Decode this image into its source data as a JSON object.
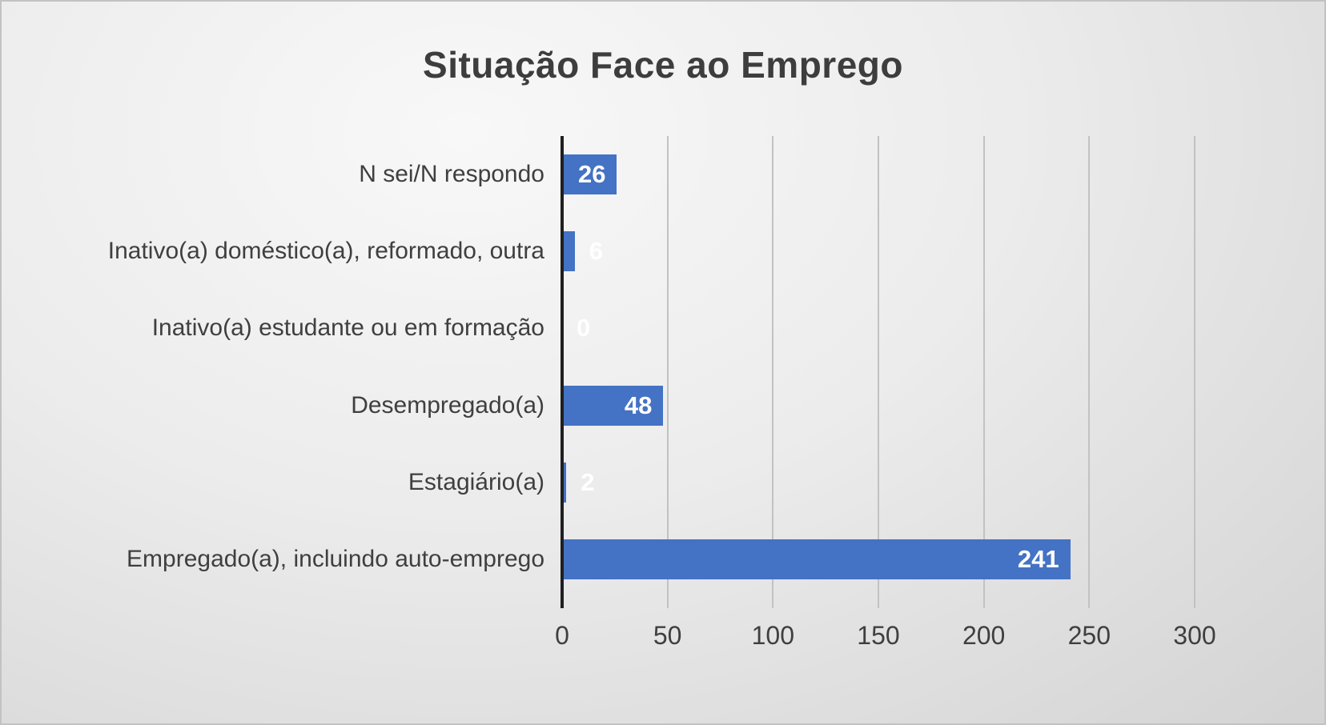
{
  "chart_data": {
    "type": "bar",
    "orientation": "horizontal",
    "title": "Situação Face ao Emprego",
    "categories": [
      "N sei/N respondo",
      "Inativo(a) doméstico(a), reformado, outra",
      "Inativo(a) estudante ou em formação",
      "Desempregado(a)",
      "Estagiário(a)",
      "Empregado(a), incluindo auto-emprego"
    ],
    "values": [
      26,
      6,
      0,
      48,
      2,
      241
    ],
    "xlim": [
      0,
      300
    ],
    "x_ticks": [
      0,
      50,
      100,
      150,
      200,
      250,
      300
    ],
    "bar_color": "#4472C4",
    "data_label_color": "#FFFFFF",
    "axis_text_color": "#3F3F3F",
    "grid": true,
    "legend": false
  }
}
